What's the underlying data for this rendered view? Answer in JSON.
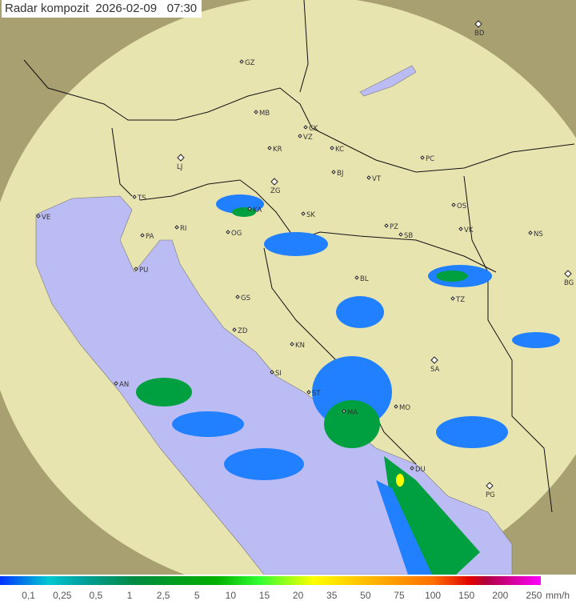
{
  "title": "Radar kompozit  2026-02-09   07:30",
  "colors": {
    "sea": "#bcbcf5",
    "land": "#e8e4b0",
    "outside": "#a8a070",
    "rain_low": "#2080ff",
    "rain_mid": "#00a040",
    "rain_high": "#ffff00"
  },
  "cities": [
    {
      "code": "BD",
      "capital": true
    },
    {
      "code": "GZ"
    },
    {
      "code": "MB"
    },
    {
      "code": "CK"
    },
    {
      "code": "KR"
    },
    {
      "code": "VZ"
    },
    {
      "code": "KC"
    },
    {
      "code": "LJ",
      "capital": true
    },
    {
      "code": "ZG",
      "capital": true
    },
    {
      "code": "BJ"
    },
    {
      "code": "VT"
    },
    {
      "code": "PC"
    },
    {
      "code": "TS"
    },
    {
      "code": "VE"
    },
    {
      "code": "RI"
    },
    {
      "code": "KA"
    },
    {
      "code": "SK"
    },
    {
      "code": "OS"
    },
    {
      "code": "PA"
    },
    {
      "code": "OG"
    },
    {
      "code": "PZ"
    },
    {
      "code": "SB"
    },
    {
      "code": "VK"
    },
    {
      "code": "NS"
    },
    {
      "code": "PU"
    },
    {
      "code": "BL"
    },
    {
      "code": "BG",
      "capital": true
    },
    {
      "code": "TZ"
    },
    {
      "code": "GS"
    },
    {
      "code": "ZD"
    },
    {
      "code": "KN"
    },
    {
      "code": "SA",
      "capital": true
    },
    {
      "code": "SI"
    },
    {
      "code": "AN"
    },
    {
      "code": "ST"
    },
    {
      "code": "MA"
    },
    {
      "code": "MO"
    },
    {
      "code": "DU"
    },
    {
      "code": "PG",
      "capital": true
    }
  ],
  "legend": {
    "labels": [
      "0,1",
      "0,25",
      "0,5",
      "1",
      "2,5",
      "5",
      "10",
      "15",
      "20",
      "35",
      "50",
      "75",
      "100",
      "150",
      "200",
      "250"
    ],
    "unit": "mm/h"
  }
}
